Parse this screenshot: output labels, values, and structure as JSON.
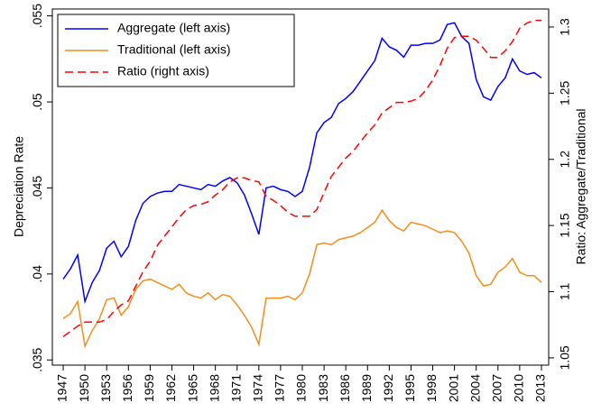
{
  "chart_data": {
    "type": "line",
    "ylabel": "Depreciation Rate",
    "y2label": "Ratio: Aggregate/Traditional",
    "x": [
      1947,
      1948,
      1949,
      1950,
      1951,
      1952,
      1953,
      1954,
      1955,
      1956,
      1957,
      1958,
      1959,
      1960,
      1961,
      1962,
      1963,
      1964,
      1965,
      1966,
      1967,
      1968,
      1969,
      1970,
      1971,
      1972,
      1973,
      1974,
      1975,
      1976,
      1977,
      1978,
      1979,
      1980,
      1981,
      1982,
      1983,
      1984,
      1985,
      1986,
      1987,
      1988,
      1989,
      1990,
      1991,
      1992,
      1993,
      1994,
      1995,
      1996,
      1997,
      1998,
      1999,
      2000,
      2001,
      2002,
      2003,
      2004,
      2005,
      2006,
      2007,
      2008,
      2009,
      2010,
      2011,
      2012,
      2013
    ],
    "xlim": [
      1945.5,
      2014
    ],
    "xticks": [
      1947,
      1950,
      1953,
      1956,
      1959,
      1962,
      1965,
      1968,
      1971,
      1974,
      1977,
      1980,
      1983,
      1986,
      1989,
      1992,
      1995,
      1998,
      2001,
      2004,
      2007,
      2010,
      2013
    ],
    "ylim": [
      0.0347,
      0.0554
    ],
    "yticks": [
      {
        "value": 0.035,
        "label": ".035"
      },
      {
        "value": 0.04,
        "label": ".04"
      },
      {
        "value": 0.045,
        "label": ".045"
      },
      {
        "value": 0.05,
        "label": ".05"
      },
      {
        "value": 0.055,
        "label": ".055"
      }
    ],
    "y2lim": [
      1.0445,
      1.3136
    ],
    "y2ticks": [
      1.05,
      1.1,
      1.15,
      1.2,
      1.25,
      1.3
    ],
    "legend": "top-left",
    "series": [
      {
        "name": "Aggregate (left axis)",
        "color": "#0000ff",
        "style": "solid",
        "values": [
          0.0397,
          0.0403,
          0.0411,
          0.0384,
          0.0395,
          0.0402,
          0.0415,
          0.0419,
          0.041,
          0.0416,
          0.0431,
          0.0441,
          0.0445,
          0.0447,
          0.0448,
          0.0448,
          0.0452,
          0.0451,
          0.045,
          0.0449,
          0.0452,
          0.0451,
          0.0454,
          0.0456,
          0.0453,
          0.0446,
          0.0435,
          0.0423,
          0.045,
          0.0451,
          0.0449,
          0.0448,
          0.0445,
          0.0448,
          0.0462,
          0.0482,
          0.0488,
          0.0491,
          0.0499,
          0.0502,
          0.0506,
          0.0512,
          0.0518,
          0.0524,
          0.0537,
          0.0532,
          0.053,
          0.0526,
          0.0533,
          0.0533,
          0.0534,
          0.0534,
          0.0536,
          0.0545,
          0.0546,
          0.0538,
          0.0534,
          0.0513,
          0.0503,
          0.0501,
          0.0509,
          0.0514,
          0.0525,
          0.0518,
          0.0516,
          0.0517,
          0.0514
        ]
      },
      {
        "name": "Traditional (left axis)",
        "color": "#f28e1c",
        "style": "solid",
        "values": [
          0.0374,
          0.0377,
          0.0384,
          0.0358,
          0.0367,
          0.0374,
          0.0385,
          0.0386,
          0.0376,
          0.0381,
          0.0391,
          0.0396,
          0.0397,
          0.0395,
          0.0393,
          0.0391,
          0.0394,
          0.0389,
          0.0387,
          0.0386,
          0.0389,
          0.0385,
          0.0388,
          0.0387,
          0.0382,
          0.0376,
          0.0369,
          0.0359,
          0.0386,
          0.0386,
          0.0386,
          0.0387,
          0.0385,
          0.0389,
          0.04,
          0.0417,
          0.0418,
          0.0417,
          0.042,
          0.0421,
          0.0422,
          0.0424,
          0.0427,
          0.043,
          0.0437,
          0.0431,
          0.0427,
          0.0425,
          0.043,
          0.0429,
          0.0428,
          0.0426,
          0.0424,
          0.0425,
          0.0424,
          0.0419,
          0.0412,
          0.0399,
          0.0393,
          0.0394,
          0.0401,
          0.0404,
          0.0409,
          0.0401,
          0.0399,
          0.0399,
          0.0395
        ]
      },
      {
        "name": "Ratio (right axis)",
        "color": "#ff0000",
        "style": "dashed",
        "axis": "y2",
        "values": [
          1.066,
          1.07,
          1.074,
          1.077,
          1.077,
          1.077,
          1.079,
          1.085,
          1.09,
          1.093,
          1.104,
          1.115,
          1.123,
          1.135,
          1.142,
          1.149,
          1.156,
          1.162,
          1.165,
          1.166,
          1.168,
          1.173,
          1.177,
          1.183,
          1.186,
          1.186,
          1.184,
          1.183,
          1.172,
          1.169,
          1.165,
          1.16,
          1.157,
          1.157,
          1.157,
          1.162,
          1.175,
          1.187,
          1.194,
          1.201,
          1.206,
          1.213,
          1.22,
          1.226,
          1.235,
          1.239,
          1.243,
          1.243,
          1.244,
          1.246,
          1.252,
          1.26,
          1.271,
          1.284,
          1.292,
          1.293,
          1.293,
          1.29,
          1.284,
          1.277,
          1.277,
          1.282,
          1.289,
          1.299,
          1.303,
          1.305,
          1.305
        ]
      }
    ]
  }
}
